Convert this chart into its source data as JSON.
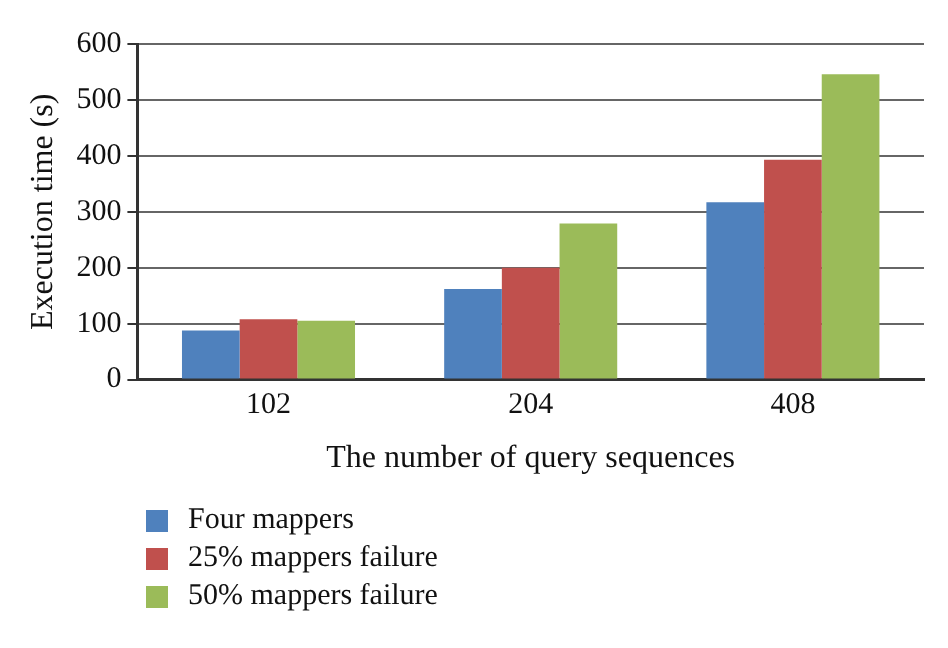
{
  "chart_data": {
    "type": "bar",
    "xlabel": "The number of query sequences",
    "ylabel": "Execution time (s)",
    "categories": [
      "102",
      "204",
      "408"
    ],
    "series": [
      {
        "name": "Four mappers",
        "color": "#4f81bd",
        "values": [
          88,
          162,
          317
        ]
      },
      {
        "name": "25% mappers failure",
        "color": "#c0504d",
        "values": [
          108,
          200,
          393
        ]
      },
      {
        "name": "50% mappers failure",
        "color": "#9bbb59",
        "values": [
          105,
          279,
          546
        ]
      }
    ],
    "ylim": [
      0,
      600
    ],
    "yticks": [
      0,
      100,
      200,
      300,
      400,
      500,
      600
    ],
    "grid": "y",
    "legend": "bottom left"
  }
}
